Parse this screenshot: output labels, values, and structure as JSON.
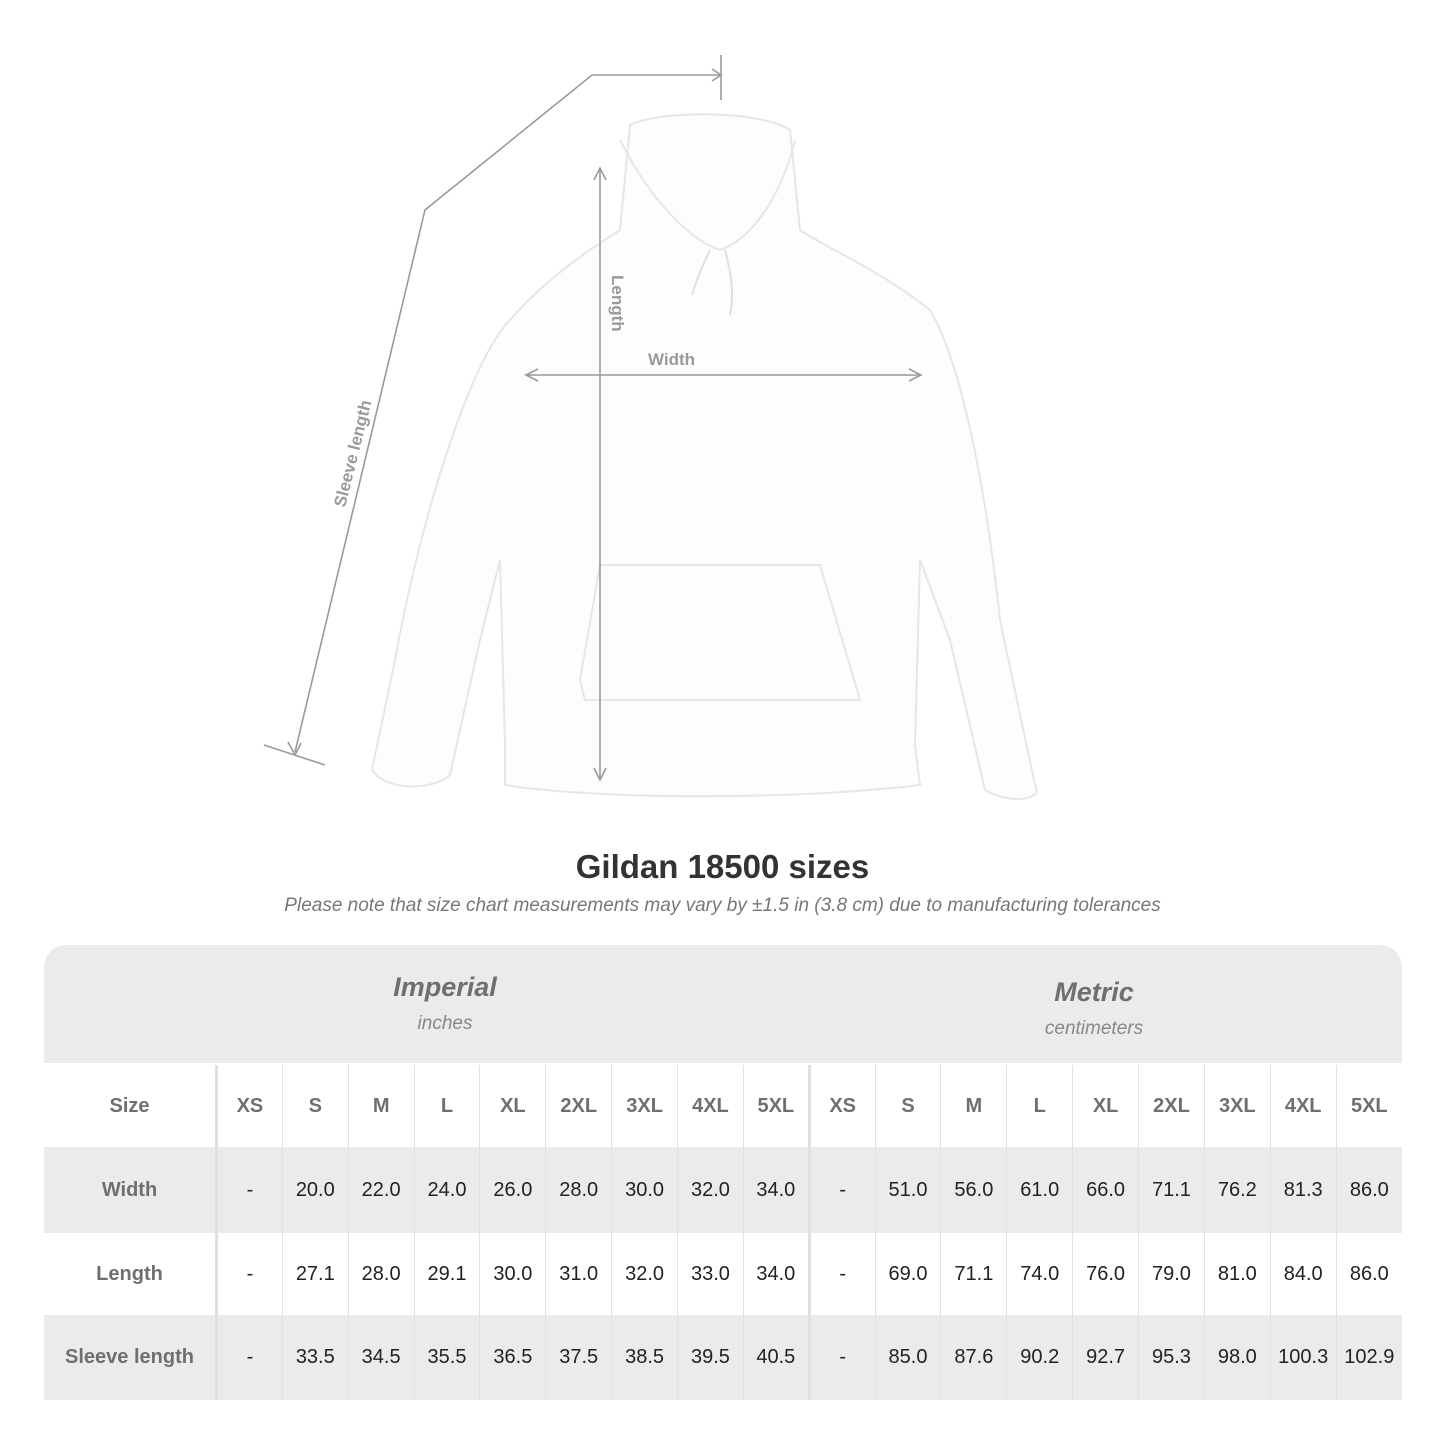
{
  "diagram": {
    "labels": {
      "sleeve": "Sleeve length",
      "length": "Length",
      "width": "Width"
    }
  },
  "header": {
    "title": "Gildan 18500 sizes",
    "note": "Please note that size chart measurements may vary by ±1.5 in (3.8 cm) due to manufacturing tolerances"
  },
  "systems": {
    "imperial": {
      "name": "Imperial",
      "unit": "inches"
    },
    "metric": {
      "name": "Metric",
      "unit": "centimeters"
    }
  },
  "table": {
    "size_label": "Size",
    "sizes": [
      "XS",
      "S",
      "M",
      "L",
      "XL",
      "2XL",
      "3XL",
      "4XL",
      "5XL"
    ],
    "rows": [
      {
        "label": "Width",
        "imperial": [
          "-",
          "20.0",
          "22.0",
          "24.0",
          "26.0",
          "28.0",
          "30.0",
          "32.0",
          "34.0"
        ],
        "metric": [
          "-",
          "51.0",
          "56.0",
          "61.0",
          "66.0",
          "71.1",
          "76.2",
          "81.3",
          "86.0"
        ]
      },
      {
        "label": "Length",
        "imperial": [
          "-",
          "27.1",
          "28.0",
          "29.1",
          "30.0",
          "31.0",
          "32.0",
          "33.0",
          "34.0"
        ],
        "metric": [
          "-",
          "69.0",
          "71.1",
          "74.0",
          "76.0",
          "79.0",
          "81.0",
          "84.0",
          "86.0"
        ]
      },
      {
        "label": "Sleeve length",
        "imperial": [
          "-",
          "33.5",
          "34.5",
          "35.5",
          "36.5",
          "37.5",
          "38.5",
          "39.5",
          "40.5"
        ],
        "metric": [
          "-",
          "85.0",
          "87.6",
          "90.2",
          "92.7",
          "95.3",
          "98.0",
          "100.3",
          "102.9"
        ]
      }
    ]
  },
  "colors": {
    "panel": "#ebebeb",
    "label_text": "#6f6f6f",
    "measure_line": "#9a9a9a"
  }
}
